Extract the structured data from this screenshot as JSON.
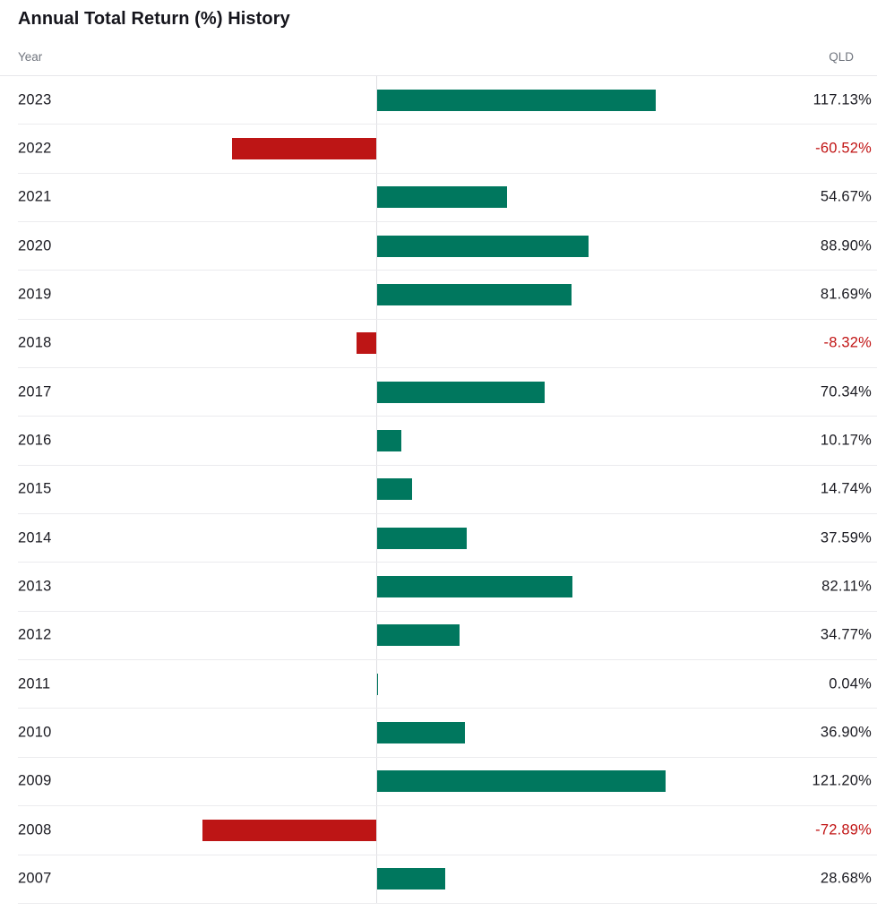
{
  "title": "Annual Total Return (%) History",
  "table_headers": {
    "year": "Year",
    "fund": "QLD"
  },
  "chart_data": {
    "type": "bar",
    "orientation": "horizontal",
    "title": "Annual Total Return (%) History",
    "series_name": "QLD",
    "categories": [
      "2023",
      "2022",
      "2021",
      "2020",
      "2019",
      "2018",
      "2017",
      "2016",
      "2015",
      "2014",
      "2013",
      "2012",
      "2011",
      "2010",
      "2009",
      "2008",
      "2007"
    ],
    "values": [
      117.13,
      -60.52,
      54.67,
      88.9,
      81.69,
      -8.32,
      70.34,
      10.17,
      14.74,
      37.59,
      82.11,
      34.77,
      0.04,
      36.9,
      121.2,
      -72.89,
      28.68
    ],
    "value_labels": [
      "117.13%",
      "-60.52%",
      "54.67%",
      "88.90%",
      "81.69%",
      "-8.32%",
      "70.34%",
      "10.17%",
      "14.74%",
      "37.59%",
      "82.11%",
      "34.77%",
      "0.04%",
      "36.90%",
      "121.20%",
      "-72.89%",
      "28.68%"
    ],
    "xlim": [
      -80,
      130
    ],
    "grid": false,
    "legend_position": "none",
    "positive_color": "#00775e",
    "negative_color": "#bd1515",
    "negative_text_color": "#c11414",
    "positive_text_color": "#1b1b22"
  }
}
